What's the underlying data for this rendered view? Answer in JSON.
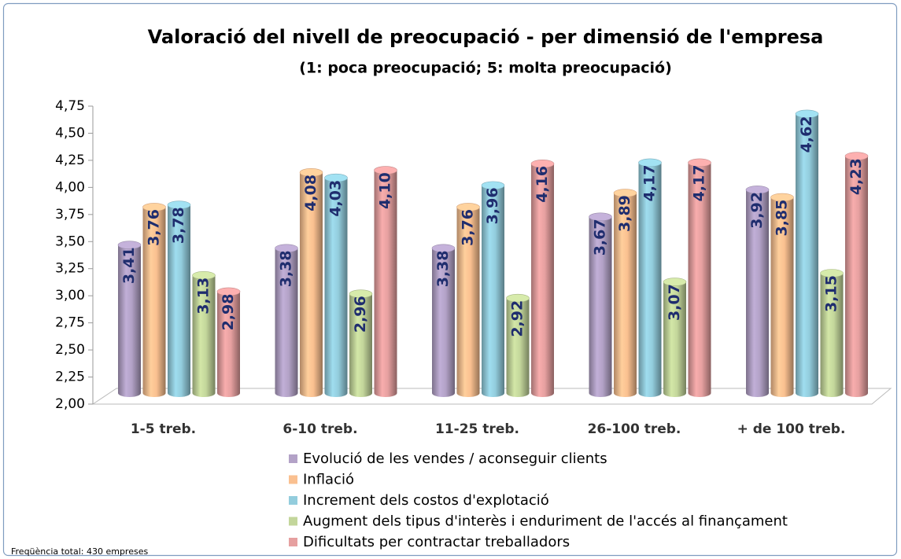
{
  "chart_data": {
    "type": "bar",
    "title": "Valoració del nivell de preocupació - per dimensió de l'empresa",
    "subtitle": "(1: poca preocupació; 5: molta  preocupació)",
    "categories": [
      "1-5 treb.",
      "6-10 treb.",
      "11-25 treb.",
      "26-100 treb.",
      "+ de 100 treb."
    ],
    "series": [
      {
        "name": "Evolució de les vendes / aconseguir clients",
        "color": "#b3a2c7",
        "values": [
          3.41,
          3.38,
          3.38,
          3.67,
          3.92
        ],
        "value_labels": [
          "3,41",
          "3,38",
          "3,38",
          "3,67",
          "3,92"
        ]
      },
      {
        "name": "Inflació",
        "color": "#fac090",
        "values": [
          3.76,
          4.08,
          3.76,
          3.89,
          3.85
        ],
        "value_labels": [
          "3,76",
          "4,08",
          "3,76",
          "3,89",
          "3,85"
        ]
      },
      {
        "name": "Increment dels costos d'explotació",
        "color": "#93cddd",
        "values": [
          3.78,
          4.03,
          3.96,
          4.17,
          4.62
        ],
        "value_labels": [
          "3,78",
          "4,03",
          "3,96",
          "4,17",
          "4,62"
        ]
      },
      {
        "name": "Augment dels tipus d'interès i enduriment de l'accés al finançament",
        "color": "#c3d69b",
        "values": [
          3.13,
          2.96,
          2.92,
          3.07,
          3.15
        ],
        "value_labels": [
          "3,13",
          "2,96",
          "2,92",
          "3,07",
          "3,15"
        ]
      },
      {
        "name": "Dificultats per contractar treballadors",
        "color": "#e6a0a0",
        "values": [
          2.98,
          4.1,
          4.16,
          4.17,
          4.23
        ],
        "value_labels": [
          "2,98",
          "4,10",
          "4,16",
          "4,17",
          "4,23"
        ]
      }
    ],
    "ylim": [
      2,
      4.75
    ],
    "yticks": [
      {
        "value": 2,
        "label": "2,00"
      },
      {
        "value": 2.25,
        "label": "2,25"
      },
      {
        "value": 2.5,
        "label": "2,50"
      },
      {
        "value": 2.75,
        "label": "2,75"
      },
      {
        "value": 3,
        "label": "3,00"
      },
      {
        "value": 3.25,
        "label": "3,25"
      },
      {
        "value": 3.5,
        "label": "3,50"
      },
      {
        "value": 3.75,
        "label": "3,75"
      },
      {
        "value": 4,
        "label": "4,00"
      },
      {
        "value": 4.25,
        "label": "4,25"
      },
      {
        "value": 4.5,
        "label": "4,50"
      },
      {
        "value": 4.75,
        "label": "4,75"
      }
    ],
    "legend": "bottom",
    "footnote": "Freqüència total: 430 empreses"
  }
}
